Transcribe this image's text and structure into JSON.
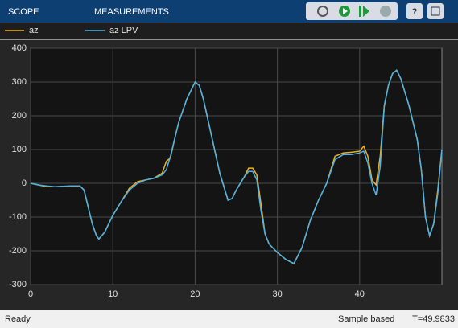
{
  "toolbar": {
    "tabs": [
      "SCOPE",
      "MEASUREMENTS"
    ]
  },
  "status": {
    "state": "Ready",
    "mode": "Sample based",
    "time": "T=49.9833"
  },
  "chart_data": {
    "type": "line",
    "x": [
      0,
      1,
      2,
      3,
      4,
      5,
      6,
      6.5,
      7,
      7.5,
      8,
      8.3,
      9,
      10,
      11,
      12,
      13,
      14,
      15,
      16,
      16.5,
      17,
      17.5,
      18,
      19,
      20,
      20.5,
      21,
      22,
      23,
      24,
      24.5,
      25,
      26,
      26.5,
      27,
      27.5,
      28,
      28.5,
      29,
      30,
      31,
      32,
      33,
      34,
      35,
      36,
      37,
      38,
      39,
      40,
      40.5,
      41,
      41.5,
      42,
      42.5,
      43,
      43.5,
      44,
      44.5,
      45,
      46,
      47,
      47.5,
      48,
      48.5,
      49,
      49.5,
      50
    ],
    "series": [
      {
        "name": "az",
        "color": "#edb120",
        "values": [
          0,
          -5,
          -10,
          -10,
          -9,
          -8,
          -8,
          -20,
          -70,
          -120,
          -155,
          -165,
          -145,
          -95,
          -55,
          -15,
          5,
          10,
          15,
          30,
          65,
          75,
          130,
          180,
          250,
          300,
          290,
          250,
          140,
          30,
          -50,
          -45,
          -20,
          20,
          45,
          45,
          25,
          -60,
          -150,
          -180,
          -205,
          -225,
          -238,
          -190,
          -110,
          -50,
          0,
          80,
          90,
          92,
          95,
          110,
          80,
          10,
          -5,
          80,
          230,
          290,
          325,
          335,
          310,
          230,
          130,
          40,
          -100,
          -155,
          -120,
          -20,
          100
        ]
      },
      {
        "name": "az LPV",
        "color": "#4db3e6",
        "values": [
          0,
          -5,
          -8,
          -10,
          -9,
          -8,
          -8,
          -20,
          -70,
          -120,
          -155,
          -165,
          -145,
          -95,
          -55,
          -20,
          0,
          10,
          15,
          25,
          40,
          80,
          130,
          180,
          250,
          300,
          290,
          250,
          140,
          30,
          -50,
          -45,
          -20,
          20,
          35,
          35,
          10,
          -80,
          -150,
          -180,
          -205,
          -225,
          -238,
          -190,
          -110,
          -50,
          0,
          70,
          85,
          85,
          90,
          95,
          60,
          0,
          -35,
          50,
          230,
          290,
          325,
          335,
          310,
          230,
          130,
          40,
          -100,
          -155,
          -120,
          -30,
          100
        ]
      }
    ],
    "xlim": [
      0,
      50
    ],
    "xticks": [
      0,
      10,
      20,
      30,
      40
    ],
    "ylim": [
      -300,
      400
    ],
    "yticks": [
      -300,
      -200,
      -100,
      0,
      100,
      200,
      300,
      400
    ],
    "grid": true
  }
}
